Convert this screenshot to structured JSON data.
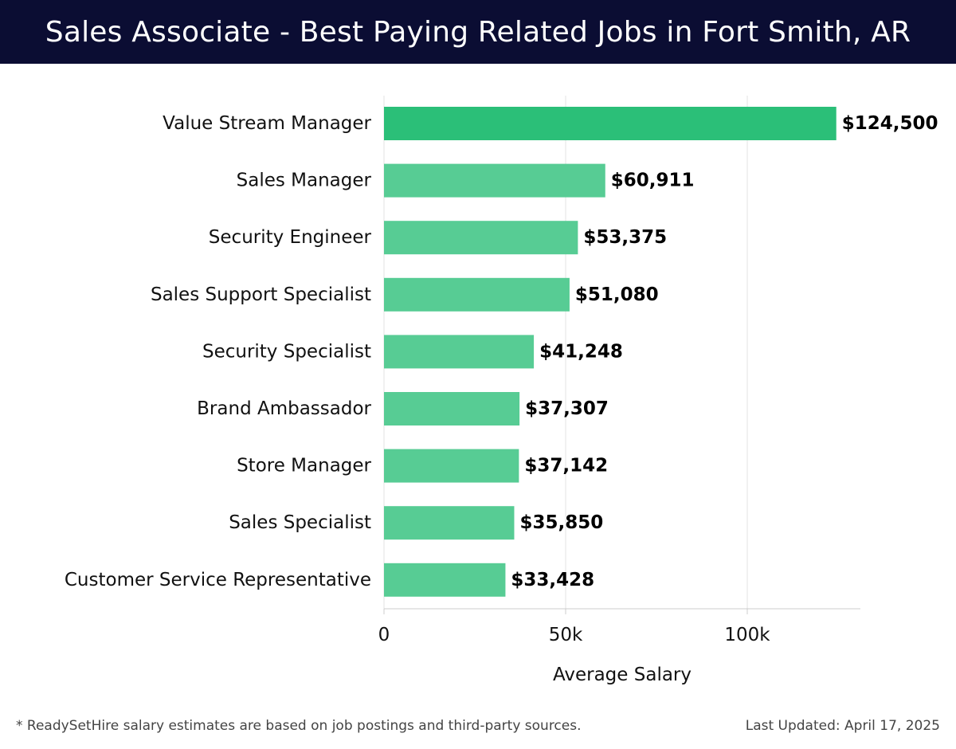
{
  "header": {
    "title": "Sales Associate - Best Paying Related Jobs in Fort Smith, AR"
  },
  "chart_data": {
    "type": "bar",
    "orientation": "horizontal",
    "title": "Sales Associate - Best Paying Related Jobs in Fort Smith, AR",
    "xlabel": "Average Salary",
    "ylabel": "",
    "xlim": [
      0,
      131000
    ],
    "xticks": [
      0,
      50000,
      100000
    ],
    "xtick_labels": [
      "0",
      "50k",
      "100k"
    ],
    "grid": true,
    "categories": [
      "Value Stream Manager",
      "Sales Manager",
      "Security Engineer",
      "Sales Support Specialist",
      "Security Specialist",
      "Brand Ambassador",
      "Store Manager",
      "Sales Specialist",
      "Customer Service Representative"
    ],
    "values": [
      124500,
      60911,
      53375,
      51080,
      41248,
      37307,
      37142,
      35850,
      33428
    ],
    "value_labels": [
      "$124,500",
      "$60,911",
      "$53,375",
      "$51,080",
      "$41,248",
      "$37,307",
      "$37,142",
      "$35,850",
      "$33,428"
    ],
    "colors": {
      "highlight": "#2bbf78",
      "bar": "#57cc94"
    }
  },
  "footer": {
    "note": "* ReadySetHire salary estimates are based on job postings and third-party sources.",
    "updated": "Last Updated: April 17, 2025"
  }
}
